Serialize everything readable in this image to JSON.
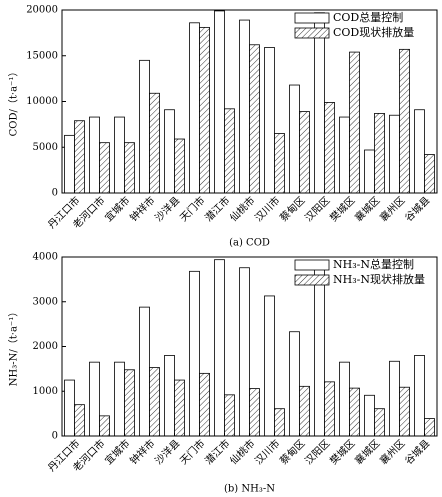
{
  "chart_data": [
    {
      "type": "bar",
      "caption": "(a) COD",
      "y_label": "COD/（t·a⁻¹）",
      "categories": [
        "丹江口市",
        "老河口市",
        "宜城市",
        "钟祥市",
        "沙洋县",
        "天门市",
        "潜江市",
        "仙桃市",
        "汉川市",
        "蔡甸区",
        "汉阳区",
        "樊城区",
        "襄城区",
        "襄州区",
        "谷城县"
      ],
      "series": [
        {
          "name": "COD总量控制",
          "color": "#ffffff",
          "hatch": false,
          "values": [
            6300,
            8300,
            8300,
            14500,
            9100,
            18600,
            19900,
            18900,
            15900,
            11800,
            19700,
            8300,
            4700,
            8500,
            9100
          ]
        },
        {
          "name": "COD现状排放量",
          "color": "#ffffff",
          "hatch": true,
          "values": [
            7900,
            5500,
            5500,
            10900,
            5900,
            18100,
            9200,
            16200,
            6500,
            8900,
            9900,
            15400,
            8700,
            15700,
            4200
          ]
        }
      ],
      "ylim": [
        0,
        20000
      ],
      "yticks": [
        0,
        5000,
        10000,
        15000,
        20000
      ],
      "legend": "upper right"
    },
    {
      "type": "bar",
      "caption": "(b) NH₃-N",
      "y_label": "NH₃-N/（t·a⁻¹）",
      "categories": [
        "丹江口市",
        "老河口市",
        "宜城市",
        "钟祥市",
        "沙洋县",
        "天门市",
        "潜江市",
        "仙桃市",
        "汉川市",
        "蔡甸区",
        "汉阳区",
        "樊城区",
        "襄城区",
        "襄州区",
        "谷城县"
      ],
      "series": [
        {
          "name": "NH₃-N总量控制",
          "color": "#ffffff",
          "hatch": false,
          "values": [
            1250,
            1650,
            1650,
            2880,
            1800,
            3680,
            3940,
            3760,
            3130,
            2330,
            3900,
            1650,
            910,
            1670,
            1800
          ]
        },
        {
          "name": "NH₃-N现状排放量",
          "color": "#ffffff",
          "hatch": true,
          "values": [
            700,
            450,
            1480,
            1530,
            1250,
            1400,
            920,
            1060,
            610,
            1110,
            1210,
            1070,
            610,
            1090,
            390
          ]
        }
      ],
      "ylim": [
        0,
        4000
      ],
      "yticks": [
        0,
        1000,
        2000,
        3000,
        4000
      ],
      "legend": "upper right"
    }
  ]
}
